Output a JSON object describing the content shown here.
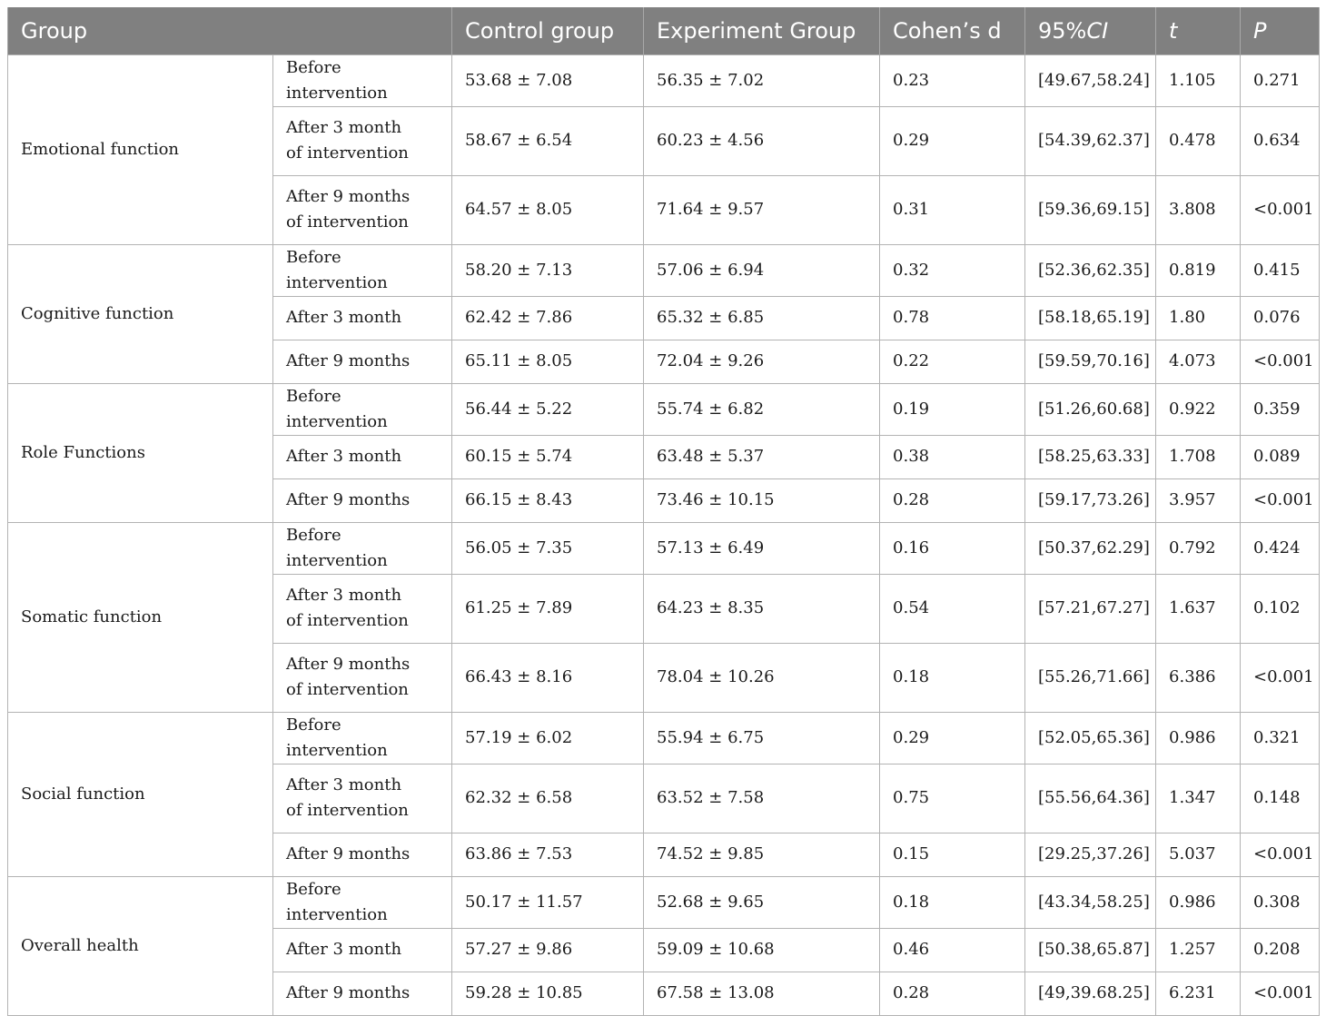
{
  "header": {
    "group": "Group",
    "control": "Control group",
    "experiment": "Experiment Group",
    "cohens_d": "Cohen’s d",
    "ci_prefix": "95%",
    "ci_italic": "CI",
    "t": "t",
    "p": "P"
  },
  "groups": [
    {
      "name": "Emotional function",
      "rows": [
        {
          "time": "Before intervention",
          "control": "53.68 ± 7.08",
          "experiment": "56.35 ± 7.02",
          "d": "0.23",
          "ci": "[49.67,58.24]",
          "t": "1.105",
          "p": "0.271"
        },
        {
          "time": "After 3 month\nof intervention",
          "control": "58.67 ± 6.54",
          "experiment": "60.23 ± 4.56",
          "d": "0.29",
          "ci": "[54.39,62.37]",
          "t": "0.478",
          "p": "0.634"
        },
        {
          "time": "After 9 months\nof intervention",
          "control": "64.57 ± 8.05",
          "experiment": "71.64 ± 9.57",
          "d": "0.31",
          "ci": "[59.36,69.15]",
          "t": "3.808",
          "p": "<0.001"
        }
      ]
    },
    {
      "name": "Cognitive function",
      "rows": [
        {
          "time": "Before intervention",
          "control": "58.20 ± 7.13",
          "experiment": "57.06 ± 6.94",
          "d": "0.32",
          "ci": "[52.36,62.35]",
          "t": "0.819",
          "p": "0.415"
        },
        {
          "time": "After 3 month",
          "control": "62.42 ± 7.86",
          "experiment": "65.32 ± 6.85",
          "d": "0.78",
          "ci": "[58.18,65.19]",
          "t": "1.80",
          "p": "0.076"
        },
        {
          "time": "After 9 months",
          "control": "65.11 ± 8.05",
          "experiment": "72.04 ± 9.26",
          "d": "0.22",
          "ci": "[59.59,70.16]",
          "t": "4.073",
          "p": "<0.001"
        }
      ]
    },
    {
      "name": "Role Functions",
      "rows": [
        {
          "time": "Before intervention",
          "control": "56.44 ± 5.22",
          "experiment": "55.74 ± 6.82",
          "d": "0.19",
          "ci": "[51.26,60.68]",
          "t": "0.922",
          "p": "0.359"
        },
        {
          "time": "After 3 month",
          "control": "60.15 ± 5.74",
          "experiment": "63.48 ± 5.37",
          "d": "0.38",
          "ci": "[58.25,63.33]",
          "t": "1.708",
          "p": "0.089"
        },
        {
          "time": "After 9 months",
          "control": "66.15 ± 8.43",
          "experiment": "73.46 ± 10.15",
          "d": "0.28",
          "ci": "[59.17,73.26]",
          "t": "3.957",
          "p": "<0.001"
        }
      ]
    },
    {
      "name": "Somatic function",
      "rows": [
        {
          "time": "Before intervention",
          "control": "56.05 ± 7.35",
          "experiment": "57.13 ± 6.49",
          "d": "0.16",
          "ci": "[50.37,62.29]",
          "t": "0.792",
          "p": "0.424"
        },
        {
          "time": "After 3 month\nof intervention",
          "control": "61.25 ± 7.89",
          "experiment": "64.23 ± 8.35",
          "d": "0.54",
          "ci": "[57.21,67.27]",
          "t": "1.637",
          "p": "0.102"
        },
        {
          "time": "After 9 months\nof intervention",
          "control": "66.43 ± 8.16",
          "experiment": "78.04 ± 10.26",
          "d": "0.18",
          "ci": "[55.26,71.66]",
          "t": "6.386",
          "p": "<0.001"
        }
      ]
    },
    {
      "name": "Social function",
      "rows": [
        {
          "time": "Before intervention",
          "control": "57.19 ± 6.02",
          "experiment": "55.94 ± 6.75",
          "d": "0.29",
          "ci": "[52.05,65.36]",
          "t": "0.986",
          "p": "0.321"
        },
        {
          "time": "After 3 month\nof intervention",
          "control": "62.32 ± 6.58",
          "experiment": "63.52 ± 7.58",
          "d": "0.75",
          "ci": "[55.56,64.36]",
          "t": "1.347",
          "p": "0.148"
        },
        {
          "time": "After 9 months",
          "control": "63.86 ± 7.53",
          "experiment": "74.52 ± 9.85",
          "d": "0.15",
          "ci": "[29.25,37.26]",
          "t": "5.037",
          "p": "<0.001"
        }
      ]
    },
    {
      "name": "Overall health",
      "rows": [
        {
          "time": "Before intervention",
          "control": "50.17 ± 11.57",
          "experiment": "52.68 ± 9.65",
          "d": "0.18",
          "ci": "[43.34,58.25]",
          "t": "0.986",
          "p": "0.308"
        },
        {
          "time": "After 3 month",
          "control": "57.27 ± 9.86",
          "experiment": "59.09 ± 10.68",
          "d": "0.46",
          "ci": "[50.38,65.87]",
          "t": "1.257",
          "p": "0.208"
        },
        {
          "time": "After 9 months",
          "control": "59.28 ± 10.85",
          "experiment": "67.58 ± 13.08",
          "d": "0.28",
          "ci": "[49,39.68.25]",
          "t": "6.231",
          "p": "<0.001"
        }
      ]
    }
  ]
}
